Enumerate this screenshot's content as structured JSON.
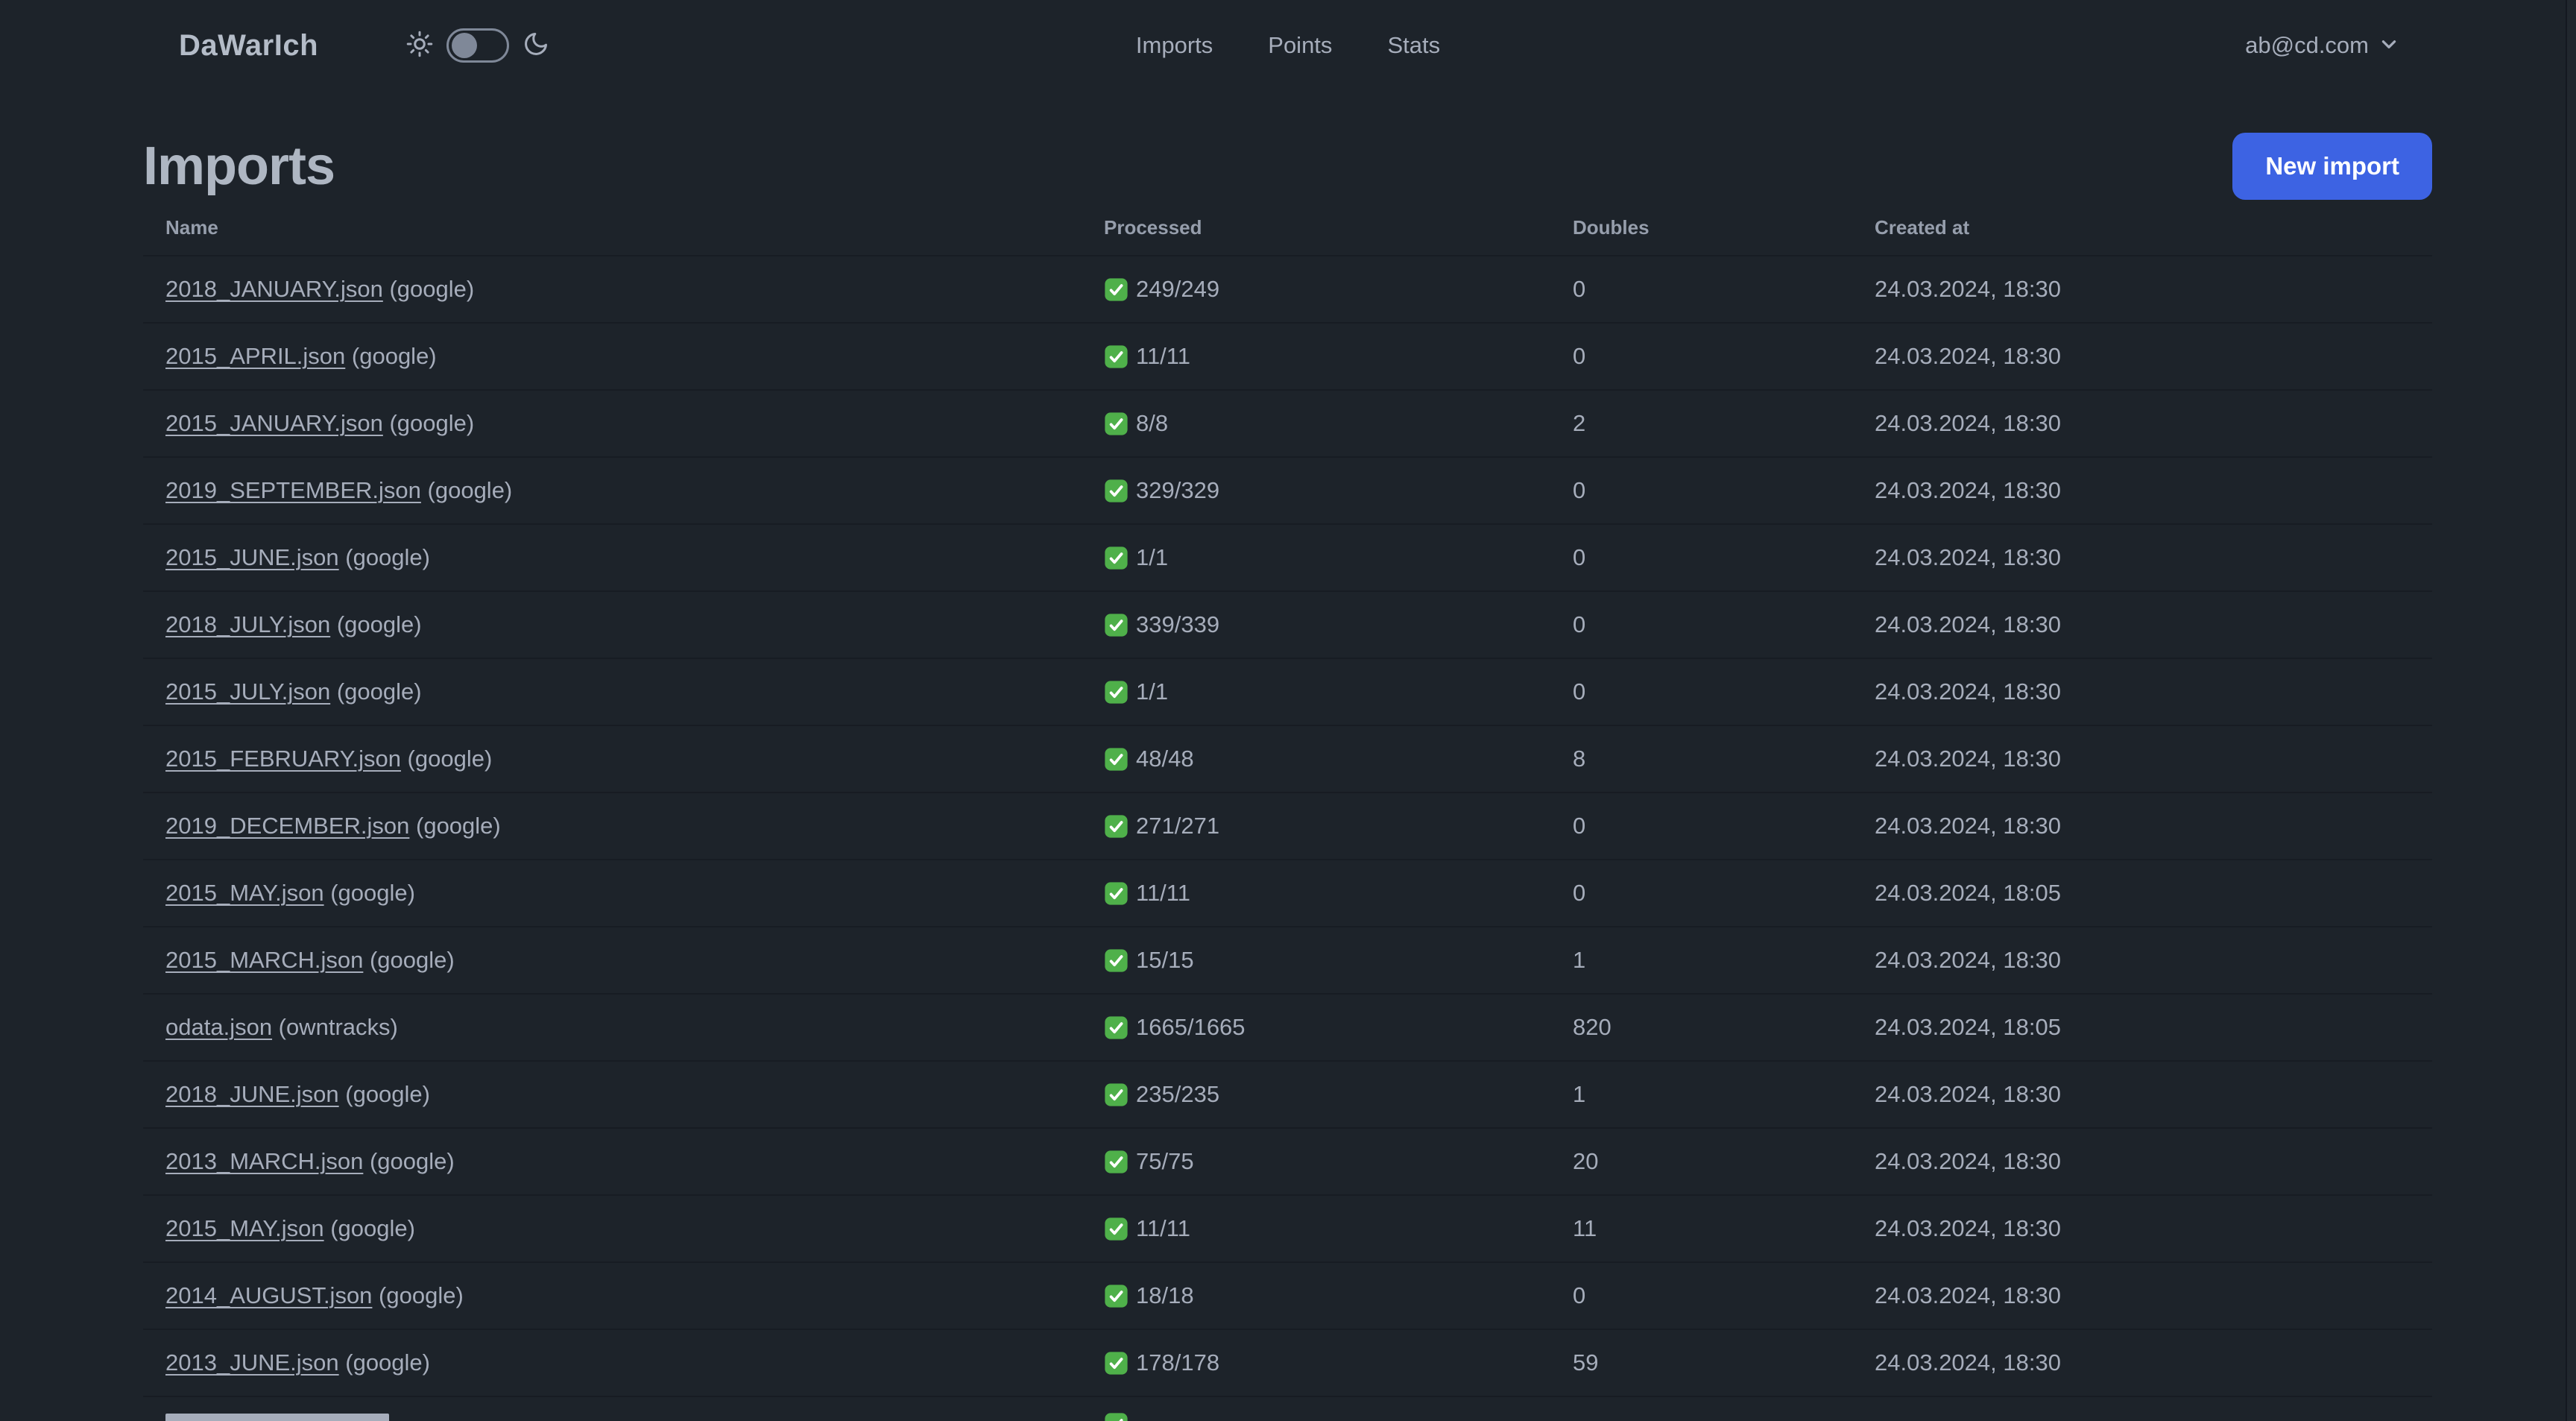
{
  "app": {
    "brand": "DaWarIch"
  },
  "navbar": {
    "theme_toggle": {
      "state": "off",
      "left_icon": "sun-icon",
      "right_icon": "moon-icon"
    },
    "links": [
      "Imports",
      "Points",
      "Stats"
    ],
    "user_email": "ab@cd.com",
    "user_menu_icon": "chevron-down-icon"
  },
  "page": {
    "title": "Imports",
    "new_import_label": "New import"
  },
  "table": {
    "columns": [
      "Name",
      "Processed",
      "Doubles",
      "Created at"
    ],
    "status_icon": "green-check-icon",
    "rows": [
      {
        "name": "2018_JANUARY.json",
        "source": "google",
        "processed": "249/249",
        "doubles": "0",
        "created_at": "24.03.2024, 18:30"
      },
      {
        "name": "2015_APRIL.json",
        "source": "google",
        "processed": "11/11",
        "doubles": "0",
        "created_at": "24.03.2024, 18:30"
      },
      {
        "name": "2015_JANUARY.json",
        "source": "google",
        "processed": "8/8",
        "doubles": "2",
        "created_at": "24.03.2024, 18:30"
      },
      {
        "name": "2019_SEPTEMBER.json",
        "source": "google",
        "processed": "329/329",
        "doubles": "0",
        "created_at": "24.03.2024, 18:30"
      },
      {
        "name": "2015_JUNE.json",
        "source": "google",
        "processed": "1/1",
        "doubles": "0",
        "created_at": "24.03.2024, 18:30"
      },
      {
        "name": "2018_JULY.json",
        "source": "google",
        "processed": "339/339",
        "doubles": "0",
        "created_at": "24.03.2024, 18:30"
      },
      {
        "name": "2015_JULY.json",
        "source": "google",
        "processed": "1/1",
        "doubles": "0",
        "created_at": "24.03.2024, 18:30"
      },
      {
        "name": "2015_FEBRUARY.json",
        "source": "google",
        "processed": "48/48",
        "doubles": "8",
        "created_at": "24.03.2024, 18:30"
      },
      {
        "name": "2019_DECEMBER.json",
        "source": "google",
        "processed": "271/271",
        "doubles": "0",
        "created_at": "24.03.2024, 18:30"
      },
      {
        "name": "2015_MAY.json",
        "source": "google",
        "processed": "11/11",
        "doubles": "0",
        "created_at": "24.03.2024, 18:05"
      },
      {
        "name": "2015_MARCH.json",
        "source": "google",
        "processed": "15/15",
        "doubles": "1",
        "created_at": "24.03.2024, 18:30"
      },
      {
        "name": "odata.json",
        "source": "owntracks",
        "processed": "1665/1665",
        "doubles": "820",
        "created_at": "24.03.2024, 18:05"
      },
      {
        "name": "2018_JUNE.json",
        "source": "google",
        "processed": "235/235",
        "doubles": "1",
        "created_at": "24.03.2024, 18:30"
      },
      {
        "name": "2013_MARCH.json",
        "source": "google",
        "processed": "75/75",
        "doubles": "20",
        "created_at": "24.03.2024, 18:30"
      },
      {
        "name": "2015_MAY.json",
        "source": "google",
        "processed": "11/11",
        "doubles": "11",
        "created_at": "24.03.2024, 18:30"
      },
      {
        "name": "2014_AUGUST.json",
        "source": "google",
        "processed": "18/18",
        "doubles": "0",
        "created_at": "24.03.2024, 18:30"
      },
      {
        "name": "2013_JUNE.json",
        "source": "google",
        "processed": "178/178",
        "doubles": "59",
        "created_at": "24.03.2024, 18:30"
      }
    ],
    "partial_row": {
      "status_icon": "green-check-icon"
    }
  },
  "colors": {
    "background": "#1d232a",
    "text": "#a6adbb",
    "heading": "#aeb6c2",
    "muted_header": "#969eac",
    "divider": "#171c23",
    "primary_button": "#3d63e3",
    "button_text": "#ffffff",
    "check_green": "#4fb04a",
    "toggle_gray": "#7f8898"
  }
}
